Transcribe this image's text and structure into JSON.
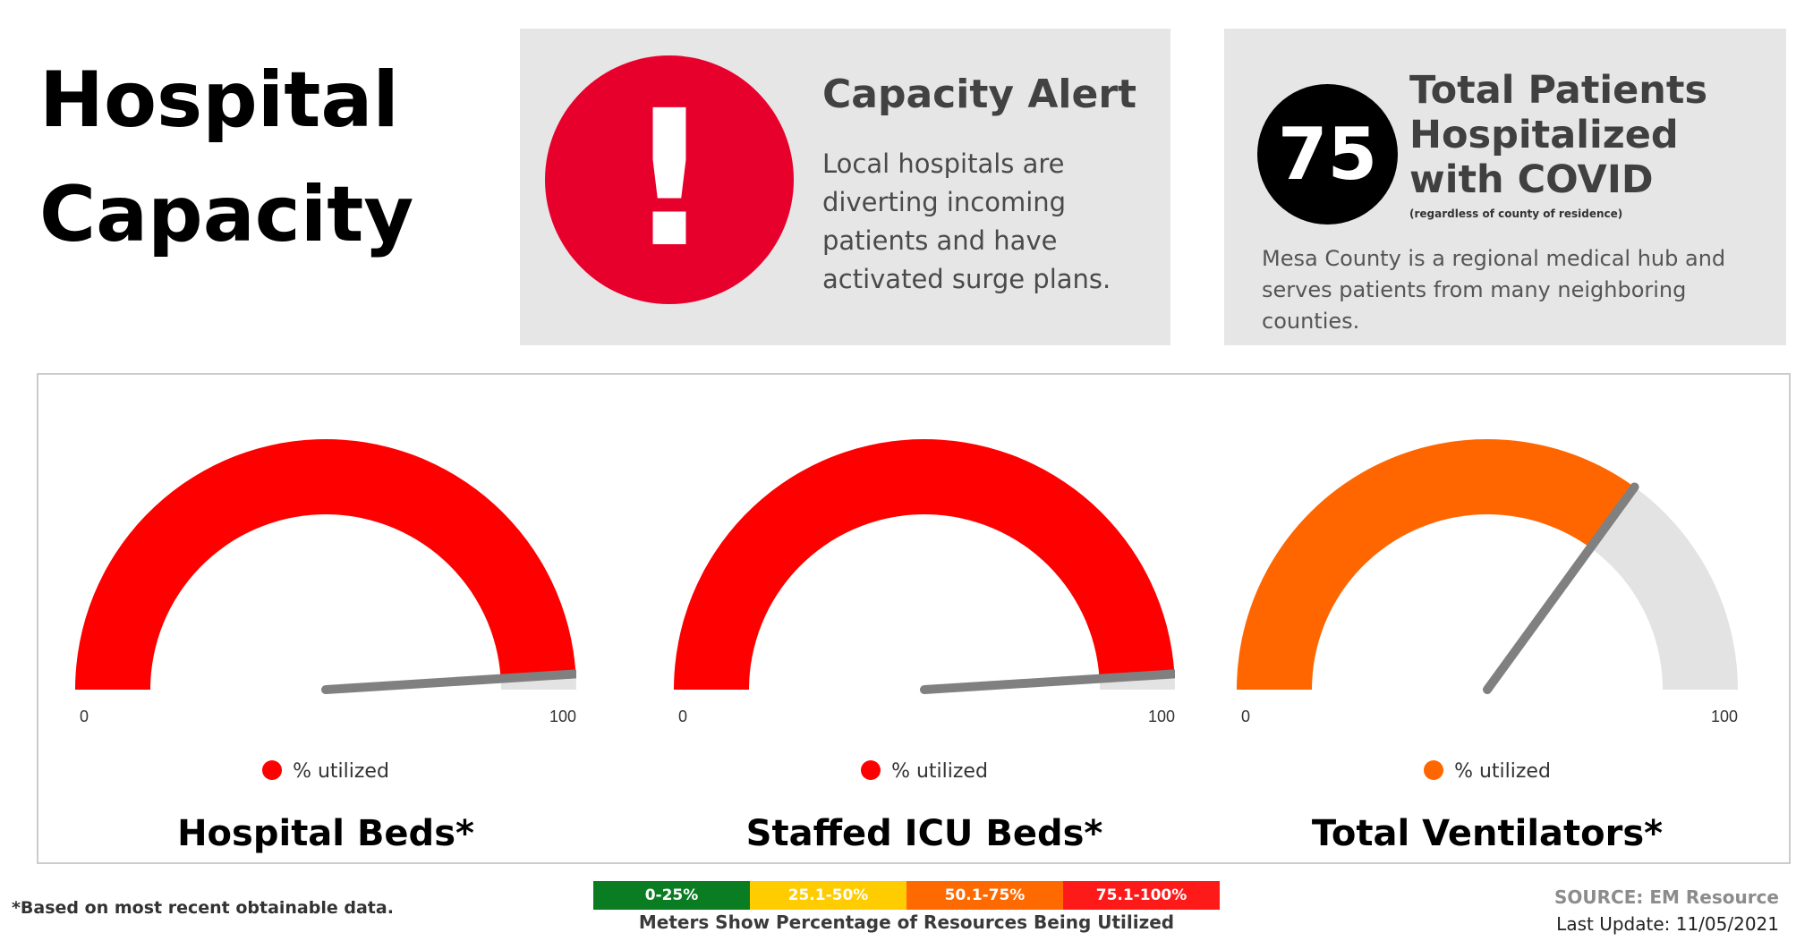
{
  "page_title": [
    "Hospital",
    "Capacity"
  ],
  "alert": {
    "icon": "exclamation-icon",
    "mark": "!",
    "title": "Capacity Alert",
    "body": "Local hospitals are diverting incoming patients and have activated surge plans.",
    "color": "#e8002d"
  },
  "patients": {
    "count": "75",
    "title": "Total Patients Hospitalized with COVID",
    "subtitle": "(regardless of county of residence)",
    "body": "Mesa County is a regional medical hub and serves patients from many neighboring counties."
  },
  "chart_data": [
    {
      "type": "gauge",
      "title": "Hospital Beds*",
      "value": 98,
      "min": 0,
      "max": 100,
      "min_label": "0",
      "max_label": "100",
      "series": [
        {
          "name": "% utilized",
          "value": 98
        }
      ],
      "color": "#ff0000"
    },
    {
      "type": "gauge",
      "title": "Staffed ICU Beds*",
      "value": 98,
      "min": 0,
      "max": 100,
      "min_label": "0",
      "max_label": "100",
      "series": [
        {
          "name": "% utilized",
          "value": 98
        }
      ],
      "color": "#ff0000"
    },
    {
      "type": "gauge",
      "title": "Total Ventilators*",
      "value": 70,
      "min": 0,
      "max": 100,
      "min_label": "0",
      "max_label": "100",
      "series": [
        {
          "name": "% utilized",
          "value": 70
        }
      ],
      "color": "#ff6600"
    }
  ],
  "gauge_track_color": "#e3e3e3",
  "needle_color": "#808080",
  "footnote": "*Based on most recent obtainable data.",
  "scale": {
    "segments": [
      {
        "label": "0-25%",
        "color": "#0a7d23"
      },
      {
        "label": "25.1-50%",
        "color": "#ffcc00"
      },
      {
        "label": "50.1-75%",
        "color": "#ff6a00"
      },
      {
        "label": "75.1-100%",
        "color": "#ff1a1a"
      }
    ],
    "caption": "Meters Show Percentage of Resources Being Utilized"
  },
  "source": "SOURCE: EM Resource",
  "last_update": "Last Update: 11/05/2021"
}
